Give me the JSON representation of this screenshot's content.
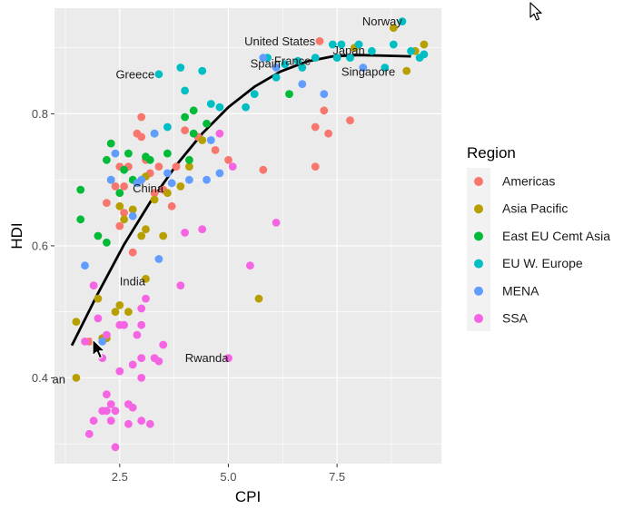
{
  "chart_data": {
    "type": "scatter",
    "title": "",
    "xlabel": "CPI",
    "ylabel": "HDI",
    "xlim": [
      1.0,
      9.9
    ],
    "ylim": [
      0.27,
      0.96
    ],
    "x_ticks": [
      {
        "value": 2.5,
        "label": "2.5"
      },
      {
        "value": 5.0,
        "label": "5.0"
      },
      {
        "value": 7.5,
        "label": "7.5"
      }
    ],
    "y_ticks": [
      {
        "value": 0.4,
        "label": "0.4"
      },
      {
        "value": 0.6,
        "label": "0.6"
      },
      {
        "value": 0.8,
        "label": "0.8"
      }
    ],
    "grid": true,
    "legend": {
      "title": "Region",
      "position": "right",
      "entries": [
        {
          "label": "Americas",
          "color": "#F8766D"
        },
        {
          "label": "Asia Pacific",
          "color": "#B79F00"
        },
        {
          "label": "East EU Cemt Asia",
          "color": "#00BA38"
        },
        {
          "label": "EU W. Europe",
          "color": "#00BFC4"
        },
        {
          "label": "MENA",
          "color": "#619CFF"
        },
        {
          "label": "SSA",
          "color": "#F564E3"
        }
      ]
    },
    "series": [
      {
        "name": "Americas",
        "color": "#F8766D",
        "points": [
          [
            1.8,
            0.455
          ],
          [
            2.2,
            0.665
          ],
          [
            2.4,
            0.69
          ],
          [
            2.5,
            0.63
          ],
          [
            2.5,
            0.72
          ],
          [
            2.6,
            0.69
          ],
          [
            2.6,
            0.65
          ],
          [
            2.7,
            0.72
          ],
          [
            2.8,
            0.59
          ],
          [
            2.9,
            0.77
          ],
          [
            3.0,
            0.795
          ],
          [
            3.0,
            0.765
          ],
          [
            3.1,
            0.73
          ],
          [
            3.2,
            0.71
          ],
          [
            3.3,
            0.68
          ],
          [
            3.4,
            0.72
          ],
          [
            3.5,
            0.685
          ],
          [
            3.7,
            0.66
          ],
          [
            3.8,
            0.72
          ],
          [
            4.0,
            0.775
          ],
          [
            4.3,
            0.765
          ],
          [
            4.7,
            0.745
          ],
          [
            5.0,
            0.73
          ],
          [
            5.8,
            0.715
          ],
          [
            7.0,
            0.78
          ],
          [
            7.0,
            0.72
          ],
          [
            7.1,
            0.91
          ],
          [
            7.2,
            0.805
          ],
          [
            7.3,
            0.77
          ],
          [
            7.8,
            0.79
          ]
        ]
      },
      {
        "name": "Asia Pacific",
        "color": "#B79F00",
        "points": [
          [
            1.5,
            0.4
          ],
          [
            1.5,
            0.485
          ],
          [
            2.0,
            0.52
          ],
          [
            2.1,
            0.46
          ],
          [
            2.2,
            0.46
          ],
          [
            2.4,
            0.5
          ],
          [
            2.5,
            0.51
          ],
          [
            2.5,
            0.66
          ],
          [
            2.6,
            0.64
          ],
          [
            2.7,
            0.5
          ],
          [
            2.8,
            0.655
          ],
          [
            3.0,
            0.615
          ],
          [
            3.1,
            0.625
          ],
          [
            3.1,
            0.55
          ],
          [
            3.1,
            0.705
          ],
          [
            3.3,
            0.67
          ],
          [
            3.5,
            0.615
          ],
          [
            3.6,
            0.68
          ],
          [
            3.9,
            0.69
          ],
          [
            4.1,
            0.72
          ],
          [
            4.4,
            0.76
          ],
          [
            5.7,
            0.52
          ],
          [
            7.9,
            0.9
          ],
          [
            8.8,
            0.93
          ],
          [
            9.1,
            0.865
          ],
          [
            9.3,
            0.895
          ],
          [
            9.5,
            0.905
          ]
        ]
      },
      {
        "name": "East EU Cemt Asia",
        "color": "#00BA38",
        "points": [
          [
            1.6,
            0.685
          ],
          [
            1.6,
            0.64
          ],
          [
            2.0,
            0.615
          ],
          [
            2.2,
            0.73
          ],
          [
            2.2,
            0.605
          ],
          [
            2.3,
            0.7
          ],
          [
            2.3,
            0.755
          ],
          [
            2.5,
            0.68
          ],
          [
            2.6,
            0.715
          ],
          [
            2.7,
            0.74
          ],
          [
            2.8,
            0.7
          ],
          [
            3.1,
            0.735
          ],
          [
            3.2,
            0.73
          ],
          [
            3.3,
            0.77
          ],
          [
            3.6,
            0.74
          ],
          [
            4.0,
            0.795
          ],
          [
            4.1,
            0.73
          ],
          [
            4.2,
            0.77
          ],
          [
            4.2,
            0.805
          ],
          [
            4.5,
            0.785
          ],
          [
            6.4,
            0.83
          ]
        ]
      },
      {
        "name": "EU W. Europe",
        "color": "#00BFC4",
        "points": [
          [
            3.4,
            0.86
          ],
          [
            3.6,
            0.78
          ],
          [
            3.9,
            0.87
          ],
          [
            4.0,
            0.835
          ],
          [
            4.4,
            0.865
          ],
          [
            4.6,
            0.815
          ],
          [
            4.8,
            0.81
          ],
          [
            5.4,
            0.81
          ],
          [
            5.6,
            0.83
          ],
          [
            5.9,
            0.885
          ],
          [
            6.1,
            0.855
          ],
          [
            6.3,
            0.875
          ],
          [
            6.6,
            0.88
          ],
          [
            6.7,
            0.87
          ],
          [
            7.0,
            0.885
          ],
          [
            7.4,
            0.905
          ],
          [
            7.5,
            0.885
          ],
          [
            7.6,
            0.905
          ],
          [
            7.8,
            0.885
          ],
          [
            8.0,
            0.905
          ],
          [
            8.3,
            0.895
          ],
          [
            8.6,
            0.87
          ],
          [
            8.8,
            0.905
          ],
          [
            9.0,
            0.94
          ],
          [
            9.2,
            0.895
          ],
          [
            9.4,
            0.885
          ],
          [
            9.5,
            0.89
          ]
        ]
      },
      {
        "name": "MENA",
        "color": "#619CFF",
        "points": [
          [
            1.7,
            0.57
          ],
          [
            2.1,
            0.455
          ],
          [
            2.3,
            0.7
          ],
          [
            2.4,
            0.74
          ],
          [
            2.8,
            0.645
          ],
          [
            2.9,
            0.695
          ],
          [
            3.0,
            0.7
          ],
          [
            3.3,
            0.77
          ],
          [
            3.4,
            0.58
          ],
          [
            3.6,
            0.71
          ],
          [
            3.7,
            0.695
          ],
          [
            4.1,
            0.7
          ],
          [
            4.5,
            0.7
          ],
          [
            4.6,
            0.76
          ],
          [
            4.8,
            0.71
          ],
          [
            5.8,
            0.885
          ],
          [
            6.1,
            0.87
          ],
          [
            6.7,
            0.845
          ],
          [
            7.2,
            0.83
          ],
          [
            8.1,
            0.87
          ]
        ]
      },
      {
        "name": "SSA",
        "color": "#F564E3",
        "points": [
          [
            1.7,
            0.455
          ],
          [
            1.8,
            0.315
          ],
          [
            1.9,
            0.335
          ],
          [
            1.9,
            0.54
          ],
          [
            2.0,
            0.49
          ],
          [
            2.1,
            0.35
          ],
          [
            2.1,
            0.43
          ],
          [
            2.2,
            0.375
          ],
          [
            2.2,
            0.35
          ],
          [
            2.2,
            0.465
          ],
          [
            2.3,
            0.36
          ],
          [
            2.3,
            0.335
          ],
          [
            2.4,
            0.295
          ],
          [
            2.4,
            0.35
          ],
          [
            2.5,
            0.48
          ],
          [
            2.5,
            0.41
          ],
          [
            2.6,
            0.48
          ],
          [
            2.7,
            0.36
          ],
          [
            2.7,
            0.33
          ],
          [
            2.8,
            0.355
          ],
          [
            2.8,
            0.42
          ],
          [
            2.9,
            0.465
          ],
          [
            3.0,
            0.43
          ],
          [
            3.0,
            0.48
          ],
          [
            3.0,
            0.4
          ],
          [
            3.0,
            0.335
          ],
          [
            3.0,
            0.505
          ],
          [
            3.1,
            0.52
          ],
          [
            3.2,
            0.33
          ],
          [
            3.3,
            0.43
          ],
          [
            3.4,
            0.425
          ],
          [
            3.5,
            0.45
          ],
          [
            3.9,
            0.54
          ],
          [
            4.0,
            0.62
          ],
          [
            4.4,
            0.625
          ],
          [
            4.8,
            0.77
          ],
          [
            5.0,
            0.43
          ],
          [
            5.1,
            0.72
          ],
          [
            5.5,
            0.57
          ],
          [
            6.1,
            0.635
          ]
        ]
      }
    ],
    "trend": {
      "color": "#000000",
      "points": [
        [
          1.4,
          0.449
        ],
        [
          2.0,
          0.528
        ],
        [
          2.6,
          0.602
        ],
        [
          3.2,
          0.666
        ],
        [
          3.8,
          0.722
        ],
        [
          4.4,
          0.77
        ],
        [
          5.0,
          0.81
        ],
        [
          5.6,
          0.841
        ],
        [
          6.2,
          0.864
        ],
        [
          6.8,
          0.879
        ],
        [
          7.4,
          0.887
        ],
        [
          8.0,
          0.889
        ],
        [
          8.6,
          0.888
        ],
        [
          9.2,
          0.887
        ]
      ]
    },
    "annotations": [
      {
        "text": "Norway",
        "x": 9.0,
        "y": 0.94,
        "anchor": "end"
      },
      {
        "text": "United States",
        "x": 7.0,
        "y": 0.91,
        "anchor": "end"
      },
      {
        "text": "Japan",
        "x": 7.4,
        "y": 0.896,
        "anchor": "start"
      },
      {
        "text": "France",
        "x": 6.9,
        "y": 0.88,
        "anchor": "end"
      },
      {
        "text": "Spain",
        "x": 6.2,
        "y": 0.876,
        "anchor": "end"
      },
      {
        "text": "Singapore",
        "x": 7.6,
        "y": 0.864,
        "anchor": "start"
      },
      {
        "text": "Greece",
        "x": 3.3,
        "y": 0.86,
        "anchor": "end"
      },
      {
        "text": "China",
        "x": 2.8,
        "y": 0.687,
        "anchor": "start"
      },
      {
        "text": "India",
        "x": 2.5,
        "y": 0.546,
        "anchor": "start"
      },
      {
        "text": "Rwanda",
        "x": 5.0,
        "y": 0.43,
        "anchor": "end"
      },
      {
        "text": "an",
        "x": 1.25,
        "y": 0.398,
        "anchor": "end"
      }
    ]
  }
}
